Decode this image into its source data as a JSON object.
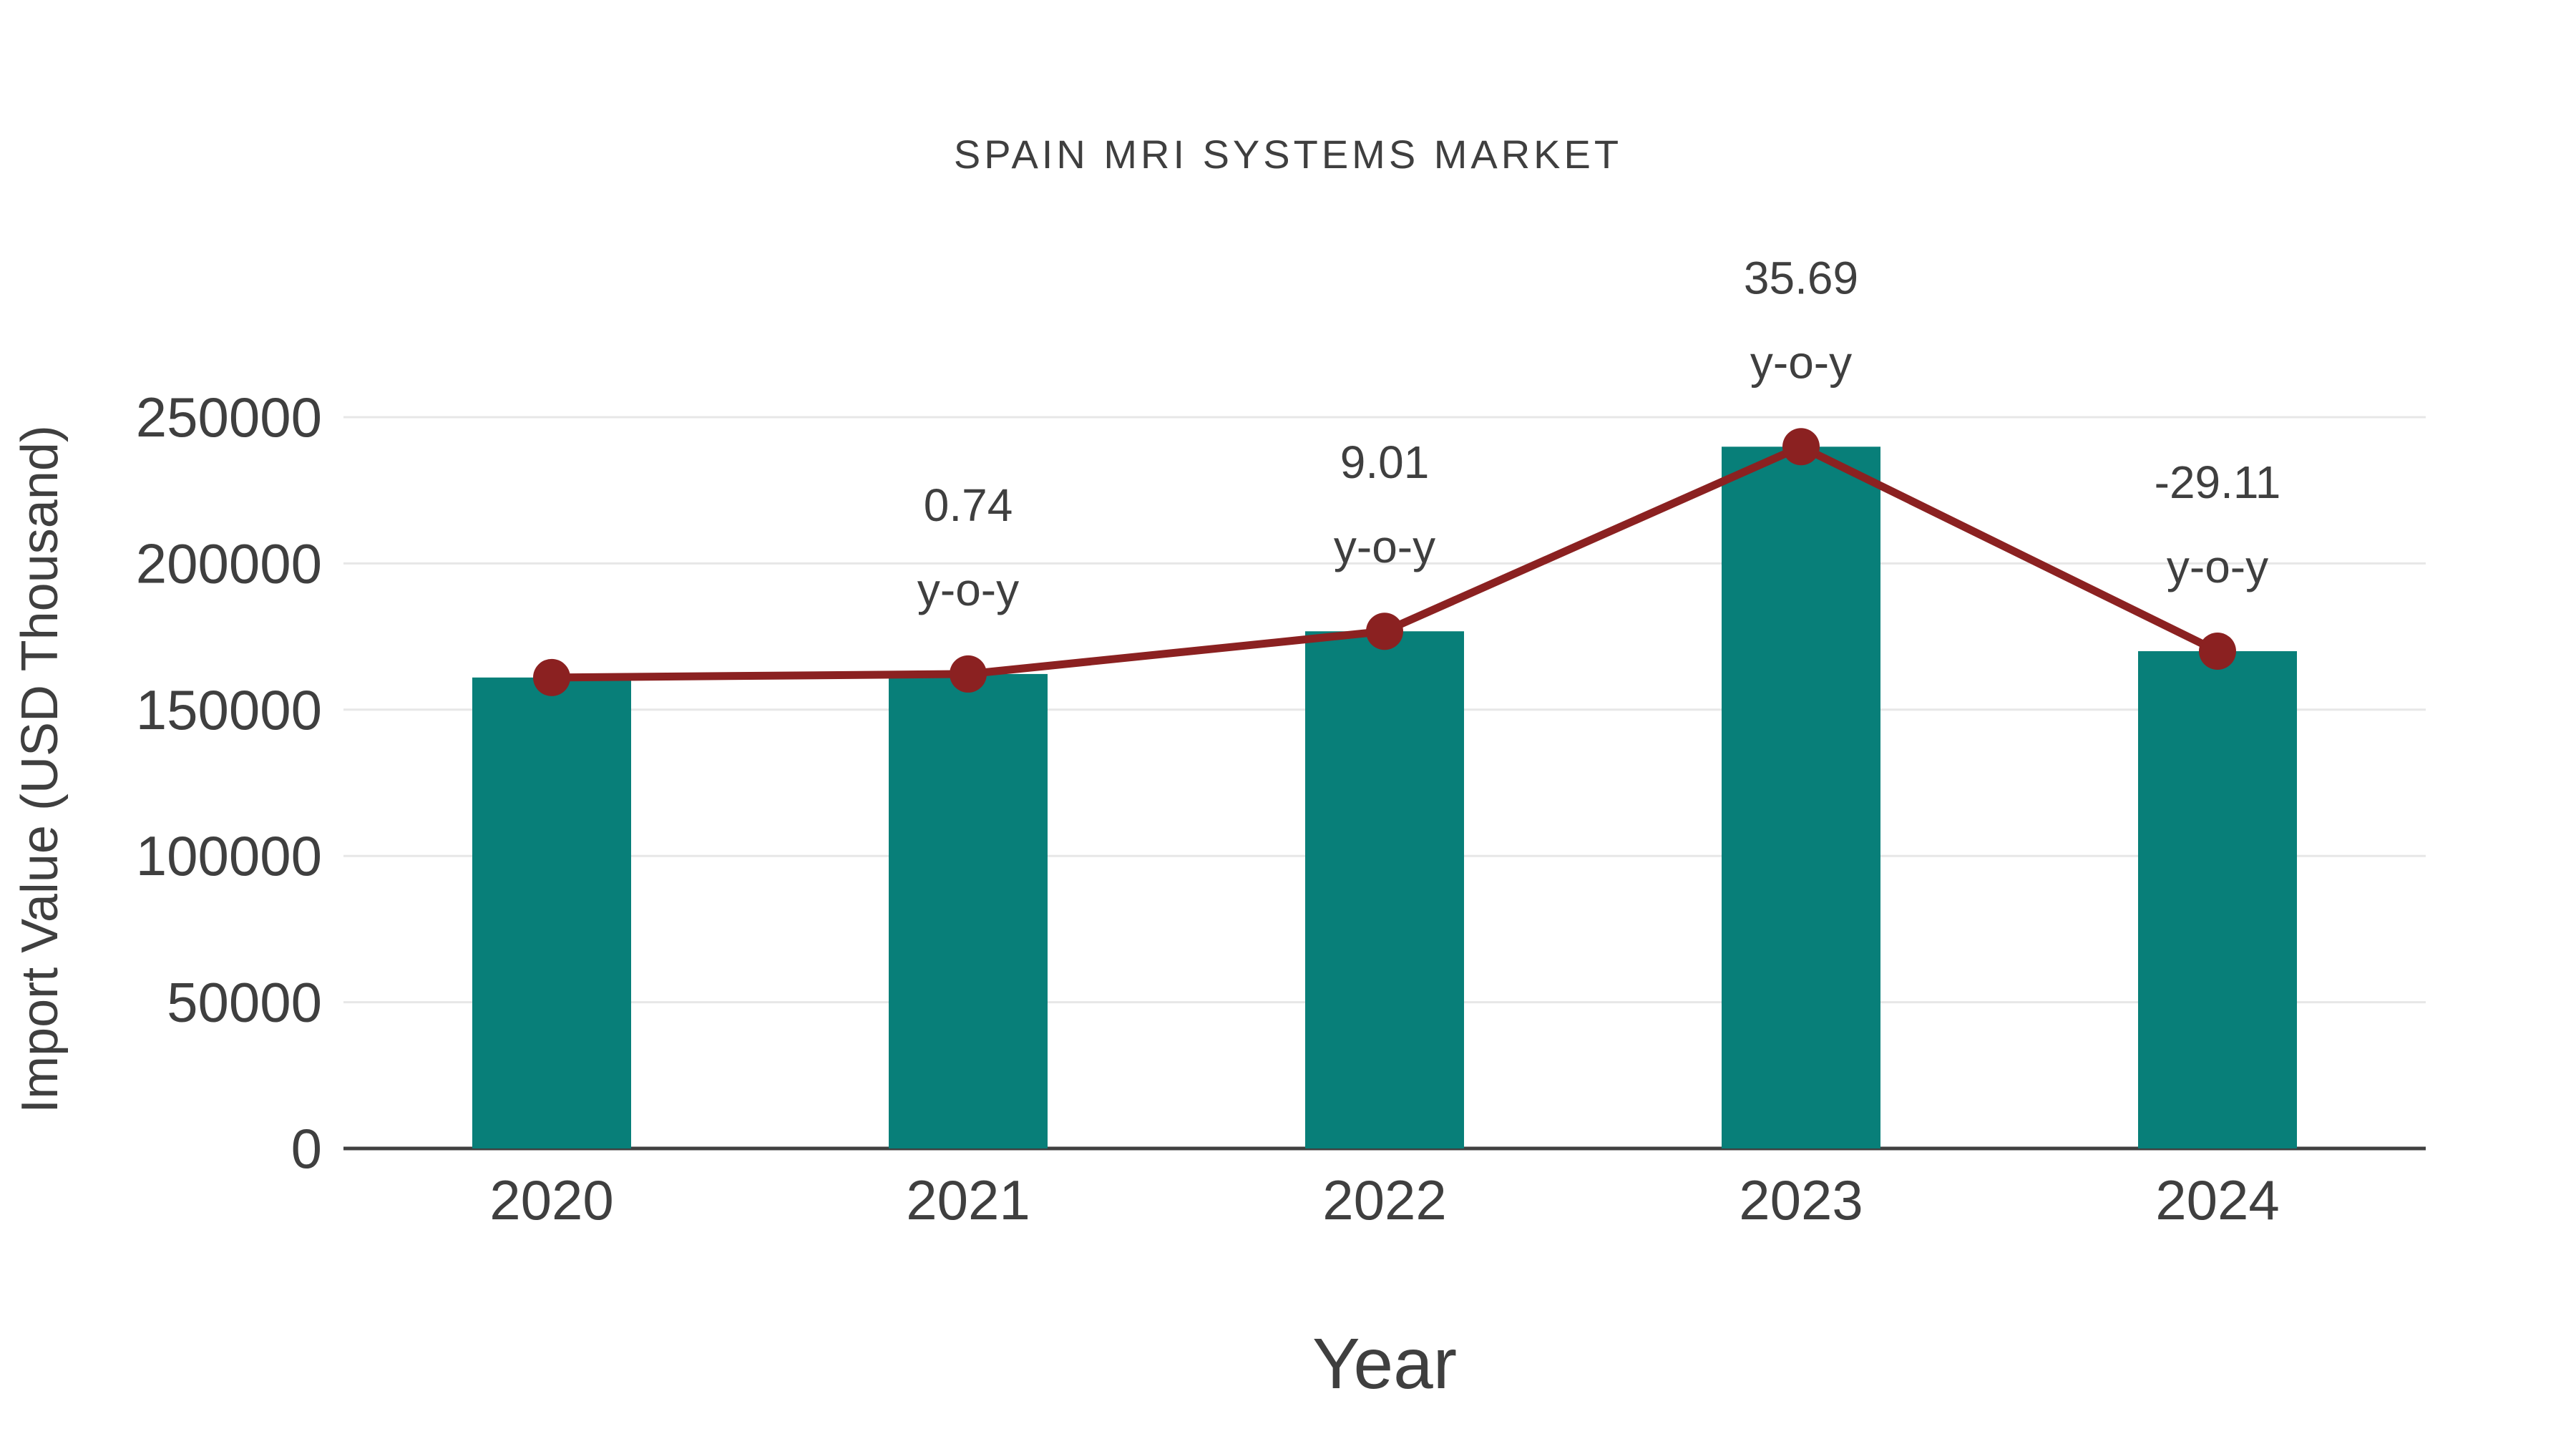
{
  "chart_data": {
    "type": "bar",
    "subtype": "bar-with-line-overlay",
    "title": "SPAIN MRI SYSTEMS MARKET",
    "xlabel": "Year",
    "ylabel": "Import Value (USD Thousand)",
    "categories": [
      "2020",
      "2021",
      "2022",
      "2023",
      "2024"
    ],
    "series": [
      {
        "type": "bar",
        "color": "#087F79",
        "values": [
          161000,
          162200,
          176800,
          239900,
          170000
        ]
      },
      {
        "type": "line",
        "color": "#8B2121",
        "values": [
          161000,
          162200,
          176800,
          239900,
          170000
        ]
      }
    ],
    "annotations": [
      {
        "category": "2021",
        "value_label": "0.74",
        "suffix": "y-o-y"
      },
      {
        "category": "2022",
        "value_label": "9.01",
        "suffix": "y-o-y"
      },
      {
        "category": "2023",
        "value_label": "35.69",
        "suffix": "y-o-y"
      },
      {
        "category": "2024",
        "value_label": "-29.11",
        "suffix": "y-o-y"
      }
    ],
    "ylim": [
      0,
      250000
    ],
    "yticks": [
      0,
      50000,
      100000,
      150000,
      200000,
      250000
    ],
    "grid": "horizontal",
    "legend": "none"
  },
  "colors": {
    "bar": "#087F79",
    "line": "#8B2121",
    "grid_line": "#E7E7E7",
    "axis_line": "#404040",
    "text": "#3F3F3F",
    "background": "#FFFFFF"
  }
}
